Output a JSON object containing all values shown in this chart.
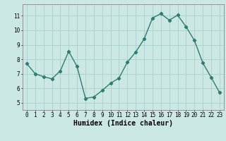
{
  "x": [
    0,
    1,
    2,
    3,
    4,
    5,
    6,
    7,
    8,
    9,
    10,
    11,
    12,
    13,
    14,
    15,
    16,
    17,
    18,
    19,
    20,
    21,
    22,
    23
  ],
  "y": [
    7.7,
    7.0,
    6.8,
    6.65,
    7.2,
    8.55,
    7.5,
    5.3,
    5.4,
    5.85,
    6.35,
    6.7,
    7.8,
    8.5,
    9.4,
    10.85,
    11.15,
    10.7,
    11.05,
    10.25,
    9.3,
    7.75,
    6.75,
    5.7
  ],
  "line_color": "#2e7d6e",
  "marker": "D",
  "marker_size": 2.2,
  "bg_color": "#cce8e4",
  "grid_color": "#aacfca",
  "xlabel": "Humidex (Indice chaleur)",
  "ylim": [
    4.5,
    11.8
  ],
  "xlim": [
    -0.5,
    23.5
  ],
  "yticks": [
    5,
    6,
    7,
    8,
    9,
    10,
    11
  ],
  "xticks": [
    0,
    1,
    2,
    3,
    4,
    5,
    6,
    7,
    8,
    9,
    10,
    11,
    12,
    13,
    14,
    15,
    16,
    17,
    18,
    19,
    20,
    21,
    22,
    23
  ],
  "tick_fontsize": 5.5,
  "xlabel_fontsize": 7.0,
  "line_width": 1.0
}
